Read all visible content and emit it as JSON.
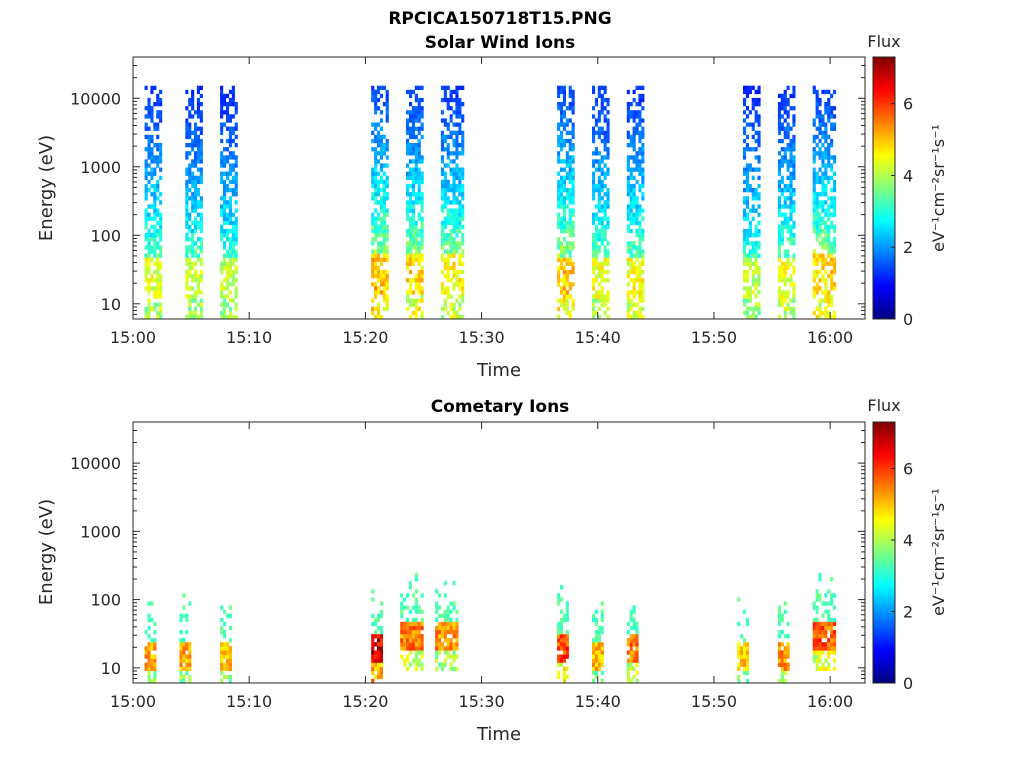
{
  "figure": {
    "title": "RPCICA150718T15.PNG"
  },
  "colormap": {
    "name": "jet",
    "stops": [
      "#00007f",
      "#0000ff",
      "#007fff",
      "#00ffff",
      "#7fff7f",
      "#ffff00",
      "#ff7f00",
      "#ff0000",
      "#7f0000"
    ]
  },
  "chart_data": [
    {
      "type": "heatmap",
      "title": "Solar Wind Ions",
      "xlabel": "Time",
      "ylabel": "Energy (eV)",
      "x_ticks": [
        "15:00",
        "15:10",
        "15:20",
        "15:30",
        "15:40",
        "15:50",
        "16:00"
      ],
      "x_range": [
        "15:00",
        "16:03"
      ],
      "y_scale": "log",
      "y_ticks": [
        "10",
        "100",
        "1000",
        "10000"
      ],
      "y_range": [
        6,
        40000
      ],
      "colorbar": {
        "title": "Flux",
        "label": "eV⁻¹cm⁻²sr⁻¹s⁻¹",
        "ticks": [
          "0",
          "2",
          "4",
          "6"
        ],
        "range": [
          0,
          7.3
        ]
      },
      "grid": false,
      "bursts": [
        {
          "start": "15:01",
          "end": "15:02.5",
          "peak_flux": 4.6,
          "peak_energy_ev": 25
        },
        {
          "start": "15:04.5",
          "end": "15:06",
          "peak_flux": 4.4,
          "peak_energy_ev": 25
        },
        {
          "start": "15:07.5",
          "end": "15:09",
          "peak_flux": 4.3,
          "peak_energy_ev": 25
        },
        {
          "start": "15:20.5",
          "end": "15:22",
          "peak_flux": 5.3,
          "peak_energy_ev": 30
        },
        {
          "start": "15:23.5",
          "end": "15:25",
          "peak_flux": 5.0,
          "peak_energy_ev": 30
        },
        {
          "start": "15:26.5",
          "end": "15:28.5",
          "peak_flux": 4.8,
          "peak_energy_ev": 30
        },
        {
          "start": "15:36.5",
          "end": "15:38",
          "peak_flux": 5.2,
          "peak_energy_ev": 25
        },
        {
          "start": "15:39.5",
          "end": "15:41",
          "peak_flux": 4.6,
          "peak_energy_ev": 25
        },
        {
          "start": "15:42.5",
          "end": "15:44",
          "peak_flux": 4.7,
          "peak_energy_ev": 25
        },
        {
          "start": "15:52.5",
          "end": "15:54",
          "peak_flux": 4.3,
          "peak_energy_ev": 25
        },
        {
          "start": "15:55.5",
          "end": "15:57",
          "peak_flux": 4.6,
          "peak_energy_ev": 25
        },
        {
          "start": "15:58.5",
          "end": "16:00.5",
          "peak_flux": 5.0,
          "peak_energy_ev": 30
        }
      ]
    },
    {
      "type": "heatmap",
      "title": "Cometary Ions",
      "xlabel": "Time",
      "ylabel": "Energy (eV)",
      "x_ticks": [
        "15:00",
        "15:10",
        "15:20",
        "15:30",
        "15:40",
        "15:50",
        "16:00"
      ],
      "x_range": [
        "15:00",
        "16:03"
      ],
      "y_scale": "log",
      "y_ticks": [
        "10",
        "100",
        "1000",
        "10000"
      ],
      "y_range": [
        6,
        40000
      ],
      "colorbar": {
        "title": "Flux",
        "label": "eV⁻¹cm⁻²sr⁻¹s⁻¹",
        "ticks": [
          "0",
          "2",
          "4",
          "6"
        ],
        "range": [
          0,
          7.3
        ]
      },
      "grid": false,
      "bursts": [
        {
          "start": "15:01",
          "end": "15:02",
          "peak_flux": 5.5,
          "peak_energy_ev": 15
        },
        {
          "start": "15:04",
          "end": "15:05",
          "peak_flux": 5.4,
          "peak_energy_ev": 15
        },
        {
          "start": "15:07.5",
          "end": "15:08.5",
          "peak_flux": 5.4,
          "peak_energy_ev": 15
        },
        {
          "start": "15:20.5",
          "end": "15:21.5",
          "peak_flux": 7.0,
          "peak_energy_ev": 20
        },
        {
          "start": "15:23",
          "end": "15:25",
          "peak_flux": 5.8,
          "peak_energy_ev": 30
        },
        {
          "start": "15:26",
          "end": "15:28",
          "peak_flux": 5.6,
          "peak_energy_ev": 30
        },
        {
          "start": "15:36.5",
          "end": "15:37.5",
          "peak_flux": 6.2,
          "peak_energy_ev": 20
        },
        {
          "start": "15:39.5",
          "end": "15:40.5",
          "peak_flux": 5.3,
          "peak_energy_ev": 15
        },
        {
          "start": "15:42.5",
          "end": "15:43.5",
          "peak_flux": 5.8,
          "peak_energy_ev": 20
        },
        {
          "start": "15:52",
          "end": "15:53",
          "peak_flux": 5.2,
          "peak_energy_ev": 15
        },
        {
          "start": "15:55.5",
          "end": "15:56.5",
          "peak_flux": 5.6,
          "peak_energy_ev": 15
        },
        {
          "start": "15:58.5",
          "end": "16:00.5",
          "peak_flux": 6.0,
          "peak_energy_ev": 30
        }
      ]
    }
  ]
}
